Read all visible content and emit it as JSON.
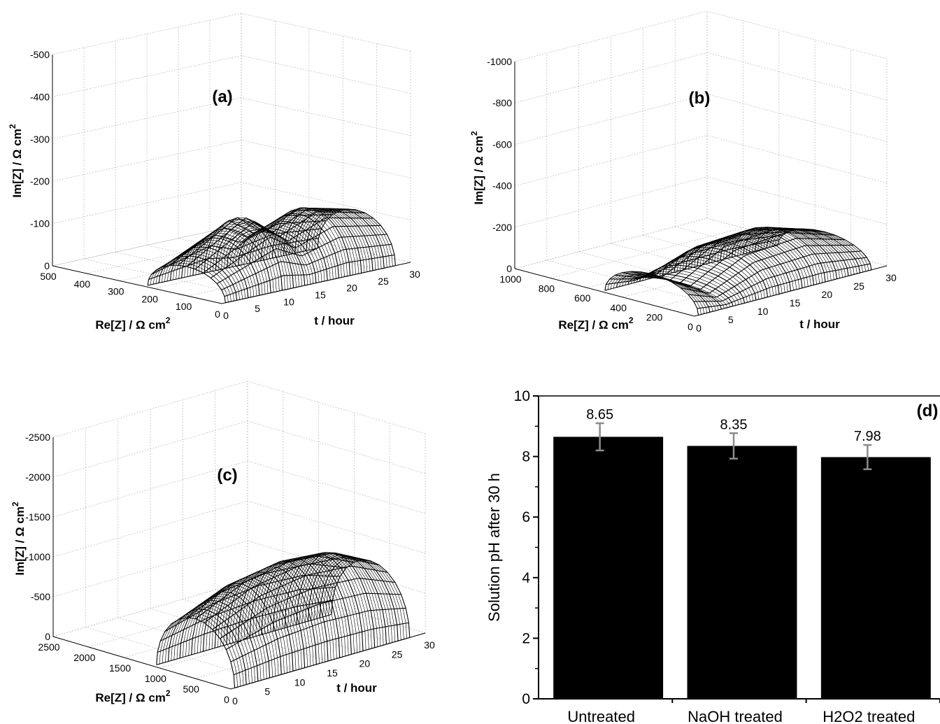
{
  "chart_data": [
    {
      "panel": "(a)",
      "type": "surface3d",
      "xlabel": "Re[Z] /  Ω cm",
      "xlabel_sup": "2",
      "ylabel": "t / hour",
      "zlabel": "Im[Z] /  Ω cm",
      "zlabel_sup": "2",
      "re_ticks": [
        "500",
        "400",
        "300",
        "200",
        "100",
        "0"
      ],
      "t_ticks": [
        "0",
        "5",
        "10",
        "15",
        "20",
        "25",
        "30"
      ],
      "im_ticks": [
        "0",
        "-100",
        "-200",
        "-300",
        "-400",
        "-500"
      ],
      "re_range": [
        0,
        500
      ],
      "t_range": [
        0,
        30
      ],
      "im_range": [
        0,
        -500
      ],
      "grid": true,
      "re_max": 230,
      "im_peak": -150,
      "series": [
        {
          "t": 0,
          "im_peak": -60
        },
        {
          "t": 10,
          "im_peak": -150
        },
        {
          "t": 14,
          "im_peak": -100
        },
        {
          "t": 20,
          "im_peak": -140
        },
        {
          "t": 28,
          "im_peak": -110
        }
      ]
    },
    {
      "panel": "(b)",
      "type": "surface3d",
      "xlabel": "Re[Z] /  Ω cm",
      "xlabel_sup": "2",
      "ylabel": "t / hour",
      "zlabel": "Im[Z] /  Ω cm",
      "zlabel_sup": "2",
      "re_ticks": [
        "1000",
        "800",
        "600",
        "400",
        "200",
        "0"
      ],
      "t_ticks": [
        "0",
        "5",
        "10",
        "15",
        "20",
        "25",
        "30"
      ],
      "im_ticks": [
        "0",
        "-200",
        "-400",
        "-600",
        "-800",
        "-1000"
      ],
      "re_range": [
        0,
        1000
      ],
      "t_range": [
        0,
        30
      ],
      "im_range": [
        0,
        -1000
      ],
      "grid": true,
      "re_max": 520,
      "im_peak": -200,
      "series": [
        {
          "t": 0,
          "im_peak": -150
        },
        {
          "t": 5,
          "im_peak": -60
        },
        {
          "t": 12,
          "im_peak": -180
        },
        {
          "t": 20,
          "im_peak": -200
        },
        {
          "t": 28,
          "im_peak": -120
        }
      ]
    },
    {
      "panel": "(c)",
      "type": "surface3d",
      "xlabel": "Re[Z] /  Ω cm",
      "xlabel_sup": "2",
      "ylabel": "t / hour",
      "zlabel": "Im[Z] /  Ω cm",
      "zlabel_sup": "2",
      "re_ticks": [
        "2500",
        "2000",
        "1500",
        "1000",
        "500",
        "0"
      ],
      "t_ticks": [
        "0",
        "5",
        "10",
        "15",
        "20",
        "25",
        "30"
      ],
      "im_ticks": [
        "0",
        "-500",
        "-1000",
        "-1500",
        "-2000",
        "-2500"
      ],
      "re_range": [
        0,
        2500
      ],
      "t_range": [
        0,
        30
      ],
      "im_range": [
        0,
        -2500
      ],
      "grid": true,
      "re_max": 1100,
      "im_peak": -1100,
      "series": [
        {
          "t": 0,
          "im_peak": -700
        },
        {
          "t": 8,
          "im_peak": -1000
        },
        {
          "t": 15,
          "im_peak": -1100
        },
        {
          "t": 22,
          "im_peak": -1050
        },
        {
          "t": 28,
          "im_peak": -800
        }
      ]
    },
    {
      "panel": "(d)",
      "type": "bar",
      "categories": [
        "Untreated",
        "NaOH treated",
        "H2O2 treated"
      ],
      "values": [
        8.65,
        8.35,
        7.98
      ],
      "value_labels": [
        "8.65",
        "8.35",
        "7.98"
      ],
      "errors": [
        0.45,
        0.42,
        0.4
      ],
      "ylabel": "Solution pH after 30 h",
      "ylim": [
        0,
        10
      ],
      "yticks": [
        "0",
        "2",
        "4",
        "6",
        "8",
        "10"
      ],
      "colors": {
        "bar": "#000000",
        "error": "#8c8c8c"
      }
    }
  ]
}
